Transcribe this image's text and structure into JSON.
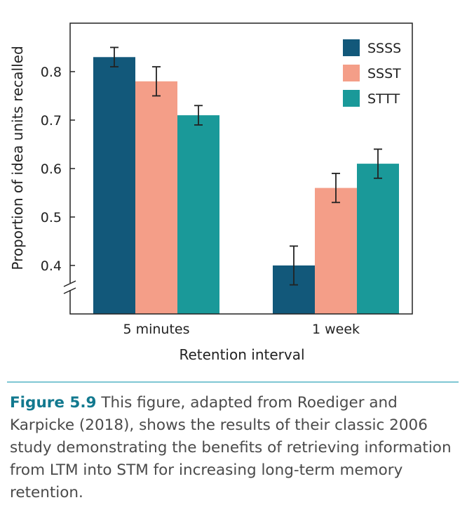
{
  "colors": {
    "series": [
      "#12587a",
      "#f49e88",
      "#1a9999"
    ],
    "axis": "#222222",
    "caption_label": "#12798f",
    "caption_text": "#4a4a4a",
    "caption_rule": "#7fc7d3"
  },
  "chart_data": {
    "type": "bar",
    "categories": [
      "5 minutes",
      "1 week"
    ],
    "series": [
      {
        "name": "SSSS",
        "values": [
          0.83,
          0.4
        ],
        "errors": [
          0.02,
          0.04
        ]
      },
      {
        "name": "SSST",
        "values": [
          0.78,
          0.56
        ],
        "errors": [
          0.03,
          0.03
        ]
      },
      {
        "name": "STTT",
        "values": [
          0.71,
          0.61
        ],
        "errors": [
          0.02,
          0.03
        ]
      }
    ],
    "title": "",
    "xlabel": "Retention interval",
    "ylabel": "Proportion of idea units recalled",
    "ylim": [
      0.3,
      0.9
    ],
    "yticks": [
      "0.4",
      "0.5",
      "0.6",
      "0.7",
      "0.8"
    ],
    "ytick_values": [
      0.4,
      0.5,
      0.6,
      0.7,
      0.8
    ],
    "axis_break": true,
    "grid": false,
    "legend_position": "top-right"
  },
  "caption": {
    "label": "Figure 5.9",
    "text": "This figure, adapted from Roediger and Karpicke (2018), shows the results of their classic 2006 study demonstrating the benefits of retrieving information from LTM into STM for increasing long-term memory retention."
  }
}
